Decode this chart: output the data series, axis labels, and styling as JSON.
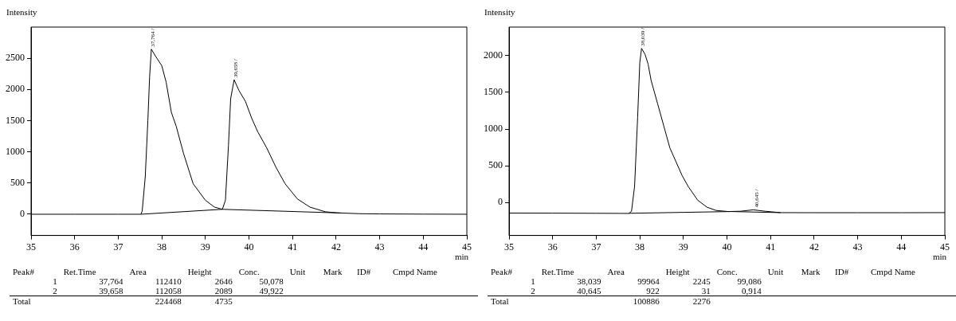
{
  "chart_data": [
    {
      "type": "line",
      "ylabel": "Intensity",
      "xlabel": "min",
      "xlim": [
        35,
        45
      ],
      "xticks": [
        35,
        36,
        37,
        38,
        39,
        40,
        41,
        42,
        43,
        44,
        45
      ],
      "ylim": [
        -340,
        3000
      ],
      "yticks": [
        0,
        500,
        1000,
        1500,
        2000,
        2500
      ],
      "grid": false,
      "legend": false,
      "marker": "none",
      "line_style": "solid",
      "series": [
        {
          "color": "#000000",
          "x": [
            35,
            36,
            37,
            37.52,
            37.55,
            37.62,
            37.68,
            37.72,
            37.76,
            37.85,
            38.0,
            38.1,
            38.22,
            38.33,
            38.5,
            38.72,
            39.0,
            39.21,
            39.39,
            39.46,
            39.53,
            39.58,
            39.66,
            39.77,
            39.92,
            40.06,
            40.2,
            40.41,
            40.62,
            40.83,
            41.11,
            41.4,
            41.75,
            42.03,
            42.52,
            43.0,
            44,
            45
          ],
          "values": [
            0,
            0,
            0,
            0,
            50,
            600,
            1500,
            2200,
            2646,
            2540,
            2380,
            2116,
            1632,
            1412,
            972,
            488,
            224,
            114,
            79,
            224,
            1104,
            1852,
            2155,
            1984,
            1808,
            1544,
            1324,
            1060,
            752,
            488,
            246,
            114,
            40,
            22,
            9,
            5,
            2,
            0
          ]
        },
        {
          "color": "#000000",
          "x": [
            37.52,
            39.39,
            42.1
          ],
          "values": [
            0,
            79,
            20
          ]
        }
      ],
      "annotations": [
        {
          "text": "37,764 /",
          "x": 37.764,
          "y": 2646
        },
        {
          "text": "39,658 /",
          "x": 39.658,
          "y": 2155
        },
        "Peak#\tRet.Time\tArea\tHeight\tConc.\tUnit\tMark\tID#\tCmpd Name",
        "1\t37,764\t112410\t2646\t50,078",
        "2\t39,658\t112058\t2089\t49,922",
        "Total\t\t224468\t4735"
      ]
    },
    {
      "type": "line",
      "ylabel": "Intensity",
      "xlabel": "min",
      "xlim": [
        35,
        45
      ],
      "xticks": [
        35,
        36,
        37,
        38,
        39,
        40,
        41,
        42,
        43,
        44,
        45
      ],
      "ylim": [
        -450,
        2390
      ],
      "yticks": [
        0,
        500,
        1000,
        1500,
        2000
      ],
      "grid": false,
      "legend": false,
      "marker": "none",
      "line_style": "solid",
      "series": [
        {
          "color": "#000000",
          "x": [
            35,
            36,
            37,
            37.75,
            37.81,
            37.88,
            37.95,
            38.0,
            38.04,
            38.12,
            38.19,
            38.26,
            38.41,
            38.55,
            38.69,
            38.83,
            38.97,
            39.11,
            39.33,
            39.54,
            39.75,
            40.03,
            40.31,
            40.6,
            40.88,
            41.23,
            42,
            43,
            44,
            45
          ],
          "values": [
            -145,
            -146,
            -148,
            -150,
            -120,
            218,
            1156,
            1906,
            2100,
            2019,
            1887,
            1662,
            1343,
            1043,
            743,
            555,
            368,
            218,
            30,
            -64,
            -109,
            -124,
            -120,
            -101,
            -120,
            -139,
            -140,
            -140,
            -140,
            -139
          ]
        },
        {
          "color": "#000000",
          "x": [
            37.75,
            40.1,
            41.23
          ],
          "values": [
            -148,
            -124,
            -139
          ]
        }
      ],
      "annotations": [
        {
          "text": "38,039 /",
          "x": 38.039,
          "y": 2100
        },
        {
          "text": "40,645 /",
          "x": 40.645,
          "y": -101
        },
        "Peak#\tRet.Time\tArea\tHeight\tConc.\tUnit\tMark\tID#\tCmpd Name",
        "1\t38,039\t99964\t2245\t99,086",
        "2\t40,645\t922\t31\t0,914",
        "Total\t\t100886\t2276"
      ]
    }
  ]
}
